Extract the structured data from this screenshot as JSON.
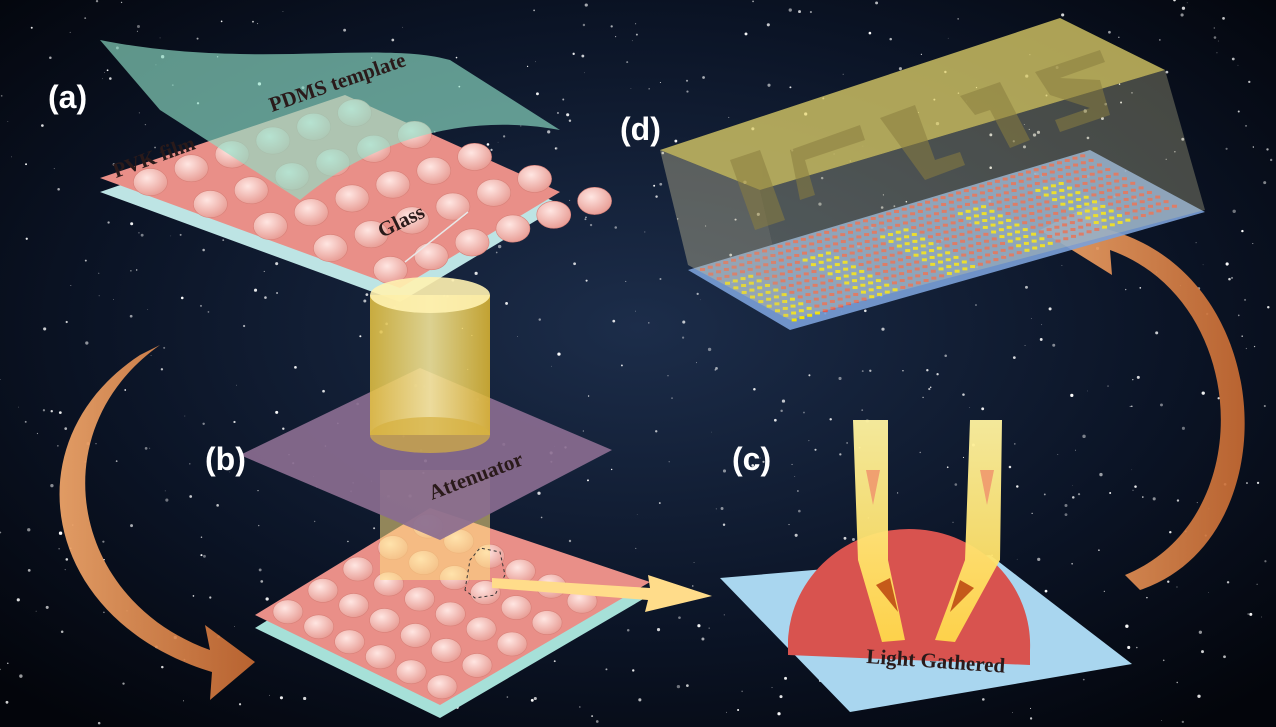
{
  "panels": [
    {
      "label": "(a)",
      "captions": [
        "PDMS template",
        "PVK film",
        "Glass"
      ]
    },
    {
      "label": "(b)",
      "captions": [
        "Attenuator"
      ]
    },
    {
      "label": "(c)",
      "captions": [
        "Light Gathered"
      ]
    },
    {
      "label": "(d)"
    }
  ]
}
